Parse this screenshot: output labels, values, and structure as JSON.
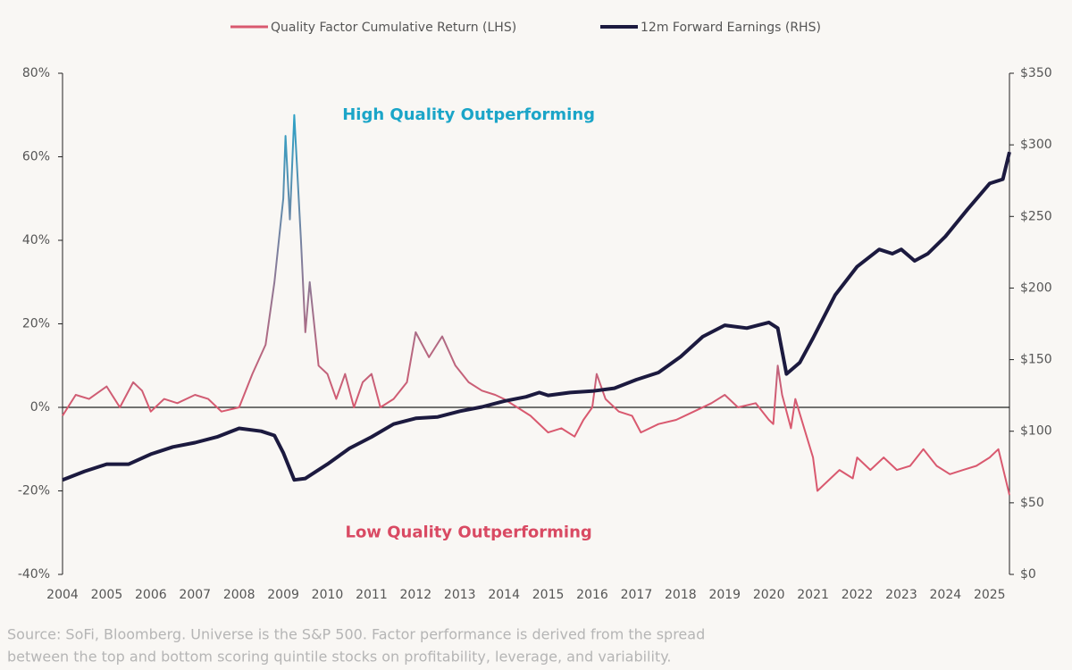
{
  "chart_data": {
    "type": "line",
    "legend": {
      "position": "top"
    },
    "annotations": [
      {
        "text": "High Quality Outperforming",
        "color": "#1ba5c8",
        "x": 2013.2,
        "y": 70
      },
      {
        "text": "Low Quality Outperforming",
        "color": "#d94a63",
        "x": 2013.2,
        "y": -30
      }
    ],
    "notes": [
      "Source: SoFi, Bloomberg. Universe is the S&P 500.  Factor performance is derived from the spread",
      "between the top and bottom scoring quintile stocks on profitability, leverage, and variability."
    ],
    "xlim": [
      2004,
      2025.45
    ],
    "xticks": [
      2004,
      2005,
      2006,
      2007,
      2008,
      2009,
      2010,
      2011,
      2012,
      2013,
      2014,
      2015,
      2016,
      2017,
      2018,
      2019,
      2020,
      2021,
      2022,
      2023,
      2024,
      2025
    ],
    "ylim": [
      -40,
      80
    ],
    "yticks": [
      {
        "value": -40,
        "label": "-40%"
      },
      {
        "value": -20,
        "label": "-20%"
      },
      {
        "value": 0,
        "label": "0%"
      },
      {
        "value": 20,
        "label": "20%"
      },
      {
        "value": 40,
        "label": "40%"
      },
      {
        "value": 60,
        "label": "60%"
      },
      {
        "value": 80,
        "label": "80%"
      }
    ],
    "y2lim": [
      0,
      350
    ],
    "y2ticks": [
      {
        "value": 0,
        "label": "$0"
      },
      {
        "value": 50,
        "label": "$50"
      },
      {
        "value": 100,
        "label": "$100"
      },
      {
        "value": 150,
        "label": "$150"
      },
      {
        "value": 200,
        "label": "$200"
      },
      {
        "value": 250,
        "label": "$250"
      },
      {
        "value": 300,
        "label": "$300"
      },
      {
        "value": 350,
        "label": "$350"
      }
    ],
    "series": [
      {
        "name": "Quality Factor Cumulative Return (LHS)",
        "color": "#d9596f",
        "gradient_top_color": "#29a3c8",
        "axis": "y",
        "x": [
          2004.0,
          2004.3,
          2004.6,
          2005.0,
          2005.3,
          2005.6,
          2005.8,
          2006.0,
          2006.3,
          2006.6,
          2007.0,
          2007.3,
          2007.6,
          2008.0,
          2008.3,
          2008.6,
          2008.8,
          2009.0,
          2009.05,
          2009.15,
          2009.25,
          2009.4,
          2009.5,
          2009.6,
          2009.8,
          2010.0,
          2010.2,
          2010.4,
          2010.6,
          2010.8,
          2011.0,
          2011.2,
          2011.5,
          2011.8,
          2012.0,
          2012.3,
          2012.6,
          2012.9,
          2013.2,
          2013.5,
          2013.8,
          2014.0,
          2014.3,
          2014.6,
          2015.0,
          2015.3,
          2015.6,
          2015.8,
          2016.0,
          2016.1,
          2016.3,
          2016.6,
          2016.9,
          2017.1,
          2017.5,
          2017.9,
          2018.3,
          2018.7,
          2019.0,
          2019.3,
          2019.7,
          2020.0,
          2020.1,
          2020.2,
          2020.3,
          2020.5,
          2020.6,
          2020.8,
          2021.0,
          2021.1,
          2021.3,
          2021.6,
          2021.9,
          2022.0,
          2022.3,
          2022.6,
          2022.9,
          2023.2,
          2023.5,
          2023.8,
          2024.1,
          2024.4,
          2024.7,
          2025.0,
          2025.2,
          2025.45
        ],
        "values": [
          -2,
          3,
          2,
          5,
          0,
          6,
          4,
          -1,
          2,
          1,
          3,
          2,
          -1,
          0,
          8,
          15,
          30,
          50,
          65,
          45,
          70,
          40,
          18,
          30,
          10,
          8,
          2,
          8,
          0,
          6,
          8,
          0,
          2,
          6,
          18,
          12,
          17,
          10,
          6,
          4,
          3,
          2,
          0,
          -2,
          -6,
          -5,
          -7,
          -3,
          0,
          8,
          2,
          -1,
          -2,
          -6,
          -4,
          -3,
          -1,
          1,
          3,
          0,
          1,
          -3,
          -4,
          10,
          3,
          -5,
          2,
          -5,
          -12,
          -20,
          -18,
          -15,
          -17,
          -12,
          -15,
          -12,
          -15,
          -14,
          -10,
          -14,
          -16,
          -15,
          -14,
          -12,
          -10,
          -21
        ]
      },
      {
        "name": "12m Forward Earnings (RHS)",
        "color": "#1c1a3f",
        "axis": "y2",
        "x": [
          2004.0,
          2004.5,
          2005.0,
          2005.5,
          2006.0,
          2006.5,
          2007.0,
          2007.5,
          2008.0,
          2008.5,
          2008.8,
          2009.0,
          2009.25,
          2009.5,
          2010.0,
          2010.5,
          2011.0,
          2011.5,
          2012.0,
          2012.5,
          2013.0,
          2013.5,
          2014.0,
          2014.5,
          2014.8,
          2015.0,
          2015.5,
          2016.0,
          2016.5,
          2017.0,
          2017.5,
          2018.0,
          2018.5,
          2019.0,
          2019.5,
          2020.0,
          2020.2,
          2020.4,
          2020.7,
          2021.0,
          2021.5,
          2022.0,
          2022.5,
          2022.8,
          2023.0,
          2023.3,
          2023.6,
          2024.0,
          2024.5,
          2025.0,
          2025.3,
          2025.45
        ],
        "values": [
          66,
          72,
          77,
          77,
          84,
          89,
          92,
          96,
          102,
          100,
          97,
          85,
          66,
          67,
          77,
          88,
          96,
          105,
          109,
          110,
          114,
          117,
          121,
          124,
          127,
          125,
          127,
          128,
          130,
          136,
          141,
          152,
          166,
          174,
          172,
          176,
          172,
          140,
          148,
          165,
          195,
          215,
          227,
          224,
          227,
          219,
          224,
          236,
          255,
          273,
          276,
          295
        ]
      }
    ]
  }
}
